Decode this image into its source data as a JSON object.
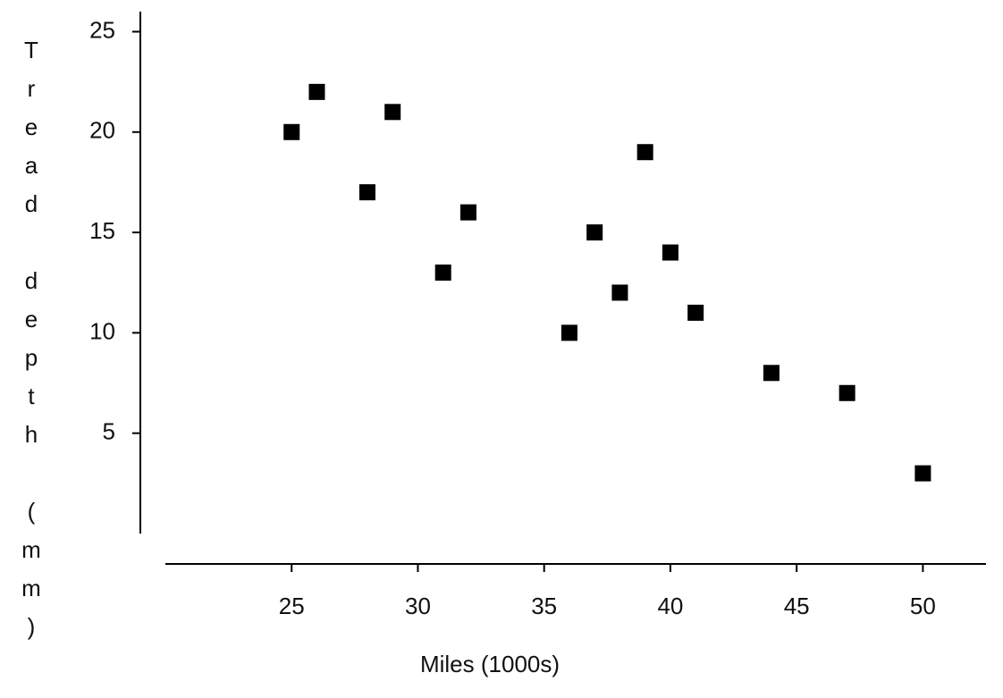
{
  "chart_data": {
    "type": "scatter",
    "xlabel": "Miles (1000s)",
    "ylabel": "Tread depth (mm)",
    "x": [
      25,
      26,
      29,
      28,
      32,
      31,
      36,
      37,
      38,
      39,
      40,
      41,
      44,
      47,
      50
    ],
    "series": [
      {
        "color": "#000000",
        "values": [
          20,
          22,
          21,
          17,
          16,
          13,
          10,
          15,
          12,
          19,
          14,
          11,
          8,
          7,
          3
        ]
      }
    ],
    "xlim": [
      20,
      52.5
    ],
    "xticks": [
      25,
      30,
      35,
      40,
      45,
      50
    ],
    "ylim": [
      0,
      26
    ],
    "yticks": [
      5,
      10,
      15,
      20,
      25
    ],
    "grid": false
  }
}
